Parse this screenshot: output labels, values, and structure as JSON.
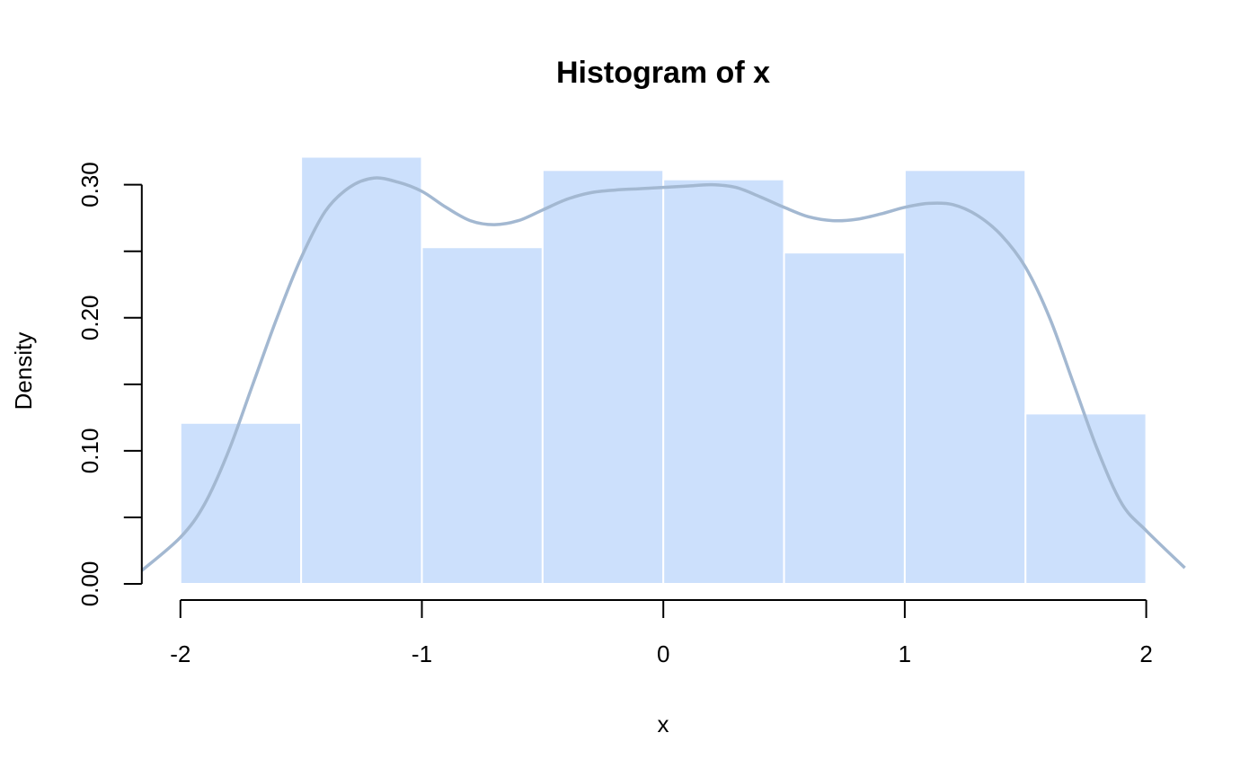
{
  "chart_data": {
    "type": "bar",
    "title": "Histogram of x",
    "xlabel": "x",
    "ylabel": "Density",
    "xlim": [
      -2.16,
      2.16
    ],
    "ylim": [
      0,
      0.32
    ],
    "x_ticks": [
      -2,
      -1,
      0,
      1,
      2
    ],
    "x_tick_labels": [
      "-2",
      "-1",
      "0",
      "1",
      "2"
    ],
    "y_ticks": [
      0,
      0.05,
      0.1,
      0.15,
      0.2,
      0.25,
      0.3
    ],
    "y_tick_labels": [
      "0.00",
      "",
      "0.10",
      "",
      "0.20",
      "",
      "0.30"
    ],
    "grid": false,
    "bins": [
      {
        "start": -2.0,
        "end": -1.5,
        "density": 0.121
      },
      {
        "start": -1.5,
        "end": -1.0,
        "density": 0.321
      },
      {
        "start": -1.0,
        "end": -0.5,
        "density": 0.253
      },
      {
        "start": -0.5,
        "end": 0.0,
        "density": 0.311
      },
      {
        "start": 0.0,
        "end": 0.5,
        "density": 0.304
      },
      {
        "start": 0.5,
        "end": 1.0,
        "density": 0.249
      },
      {
        "start": 1.0,
        "end": 1.5,
        "density": 0.311
      },
      {
        "start": 1.5,
        "end": 2.0,
        "density": 0.128
      }
    ],
    "density_curve": {
      "x": [
        -2.16,
        -2.0,
        -1.9,
        -1.8,
        -1.7,
        -1.6,
        -1.5,
        -1.4,
        -1.3,
        -1.2,
        -1.1,
        -1.0,
        -0.9,
        -0.8,
        -0.7,
        -0.6,
        -0.5,
        -0.4,
        -0.3,
        -0.2,
        -0.1,
        0.0,
        0.1,
        0.2,
        0.3,
        0.4,
        0.5,
        0.6,
        0.7,
        0.8,
        0.9,
        1.0,
        1.1,
        1.2,
        1.3,
        1.4,
        1.5,
        1.6,
        1.7,
        1.8,
        1.9,
        2.0,
        2.16
      ],
      "y": [
        0.01,
        0.035,
        0.06,
        0.1,
        0.15,
        0.2,
        0.245,
        0.28,
        0.298,
        0.305,
        0.302,
        0.295,
        0.283,
        0.273,
        0.27,
        0.273,
        0.281,
        0.289,
        0.294,
        0.296,
        0.297,
        0.298,
        0.299,
        0.3,
        0.298,
        0.291,
        0.283,
        0.276,
        0.273,
        0.274,
        0.278,
        0.283,
        0.286,
        0.285,
        0.277,
        0.262,
        0.238,
        0.2,
        0.15,
        0.1,
        0.06,
        0.04,
        0.012
      ]
    },
    "colors": {
      "bar_fill": "#cce0fc",
      "bar_border": "#ffffff",
      "curve": "#a3b8d1",
      "axis": "#000000"
    }
  }
}
